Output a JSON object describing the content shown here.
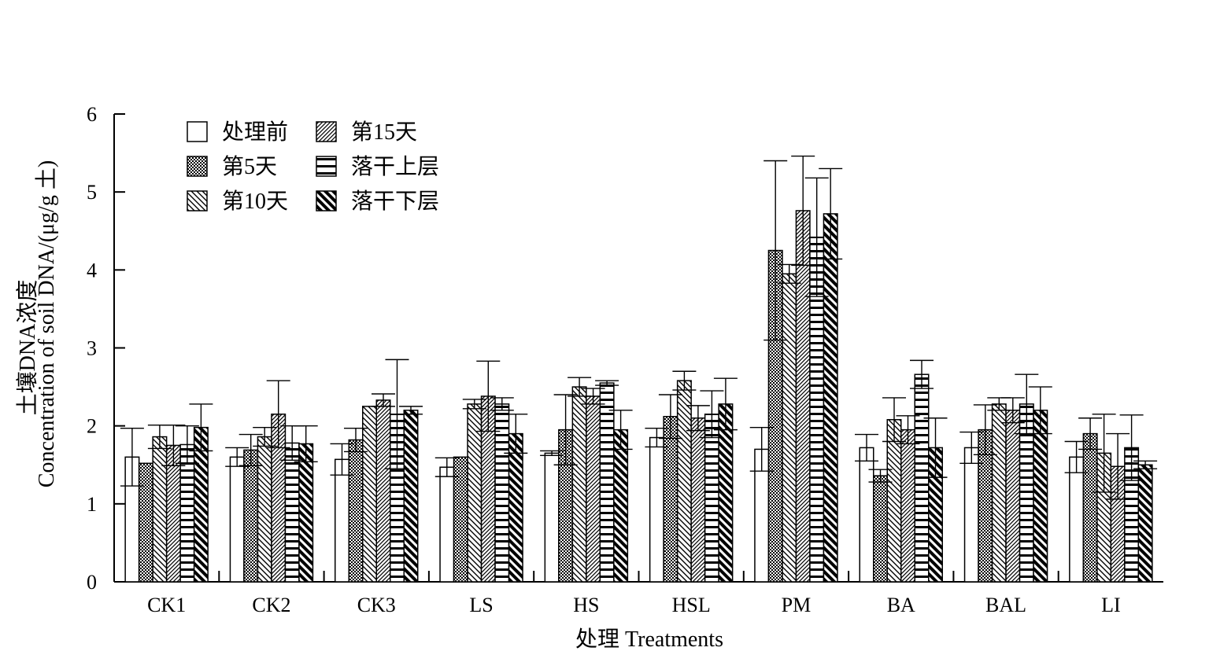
{
  "chart_data": {
    "type": "bar",
    "xlabel": "处理 Treatments",
    "ylabel_cn": "土壤DNA浓度",
    "ylabel_en": "Concentration of soil DNA/(μg/g 土)",
    "ylim": [
      0,
      6
    ],
    "yticks": [
      "0",
      "1",
      "2",
      "3",
      "4",
      "5",
      "6"
    ],
    "grid": false,
    "legend_position": "top-left",
    "categories": [
      "CK1",
      "CK2",
      "CK3",
      "LS",
      "HS",
      "HSL",
      "PM",
      "BA",
      "BAL",
      "LI"
    ],
    "series": [
      {
        "name": "处理前",
        "pattern": "open",
        "values": [
          1.6,
          1.6,
          1.57,
          1.47,
          1.65,
          1.85,
          1.7,
          1.72,
          1.72,
          1.6
        ],
        "errors": [
          0.37,
          0.12,
          0.2,
          0.12,
          0.03,
          0.12,
          0.28,
          0.17,
          0.2,
          0.2
        ]
      },
      {
        "name": "第5天",
        "pattern": "checker",
        "values": [
          1.52,
          1.69,
          1.82,
          1.6,
          1.95,
          2.12,
          4.25,
          1.36,
          1.95,
          1.9
        ],
        "errors": [
          0.0,
          0.2,
          0.15,
          0.0,
          0.45,
          0.28,
          1.15,
          0.08,
          0.32,
          0.2
        ]
      },
      {
        "name": "第10天",
        "pattern": "back-diagonal",
        "values": [
          1.86,
          1.86,
          2.25,
          2.28,
          2.5,
          2.58,
          3.95,
          2.08,
          2.28,
          1.65
        ],
        "errors": [
          0.15,
          0.12,
          0.0,
          0.06,
          0.12,
          0.12,
          0.12,
          0.28,
          0.08,
          0.5
        ]
      },
      {
        "name": "第15天",
        "pattern": "forward-diagonal",
        "values": [
          1.75,
          2.15,
          2.33,
          2.38,
          2.38,
          2.1,
          4.76,
          1.95,
          2.2,
          1.48
        ],
        "errors": [
          0.26,
          0.43,
          0.08,
          0.45,
          0.1,
          0.16,
          0.7,
          0.18,
          0.16,
          0.42
        ]
      },
      {
        "name": "落干上层",
        "pattern": "horizontal",
        "values": [
          1.76,
          1.78,
          2.15,
          2.28,
          2.55,
          2.15,
          4.42,
          2.66,
          2.28,
          1.72
        ],
        "errors": [
          0.24,
          0.22,
          0.7,
          0.08,
          0.03,
          0.3,
          0.76,
          0.18,
          0.38,
          0.42
        ]
      },
      {
        "name": "落干下层",
        "pattern": "thick-back-diagonal",
        "values": [
          1.98,
          1.77,
          2.2,
          1.9,
          1.95,
          2.28,
          4.72,
          1.72,
          2.2,
          1.5
        ],
        "errors": [
          0.3,
          0.23,
          0.05,
          0.25,
          0.25,
          0.33,
          0.58,
          0.38,
          0.3,
          0.05
        ]
      }
    ]
  }
}
